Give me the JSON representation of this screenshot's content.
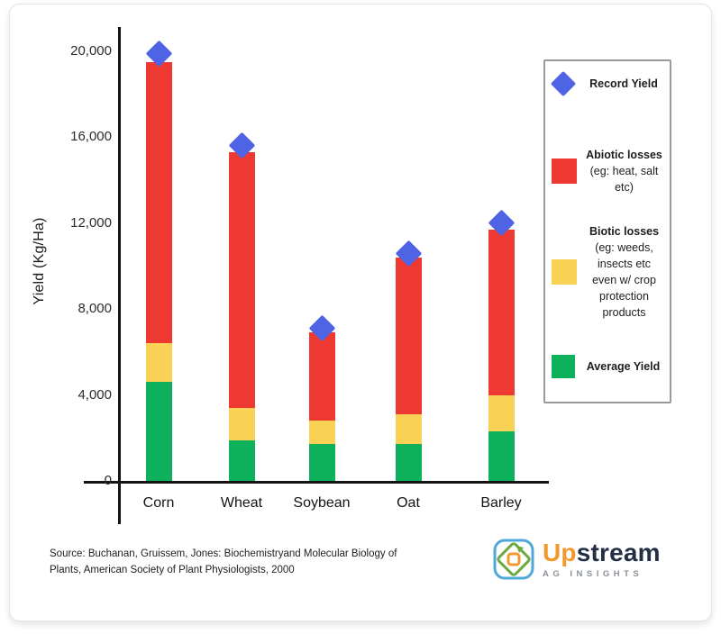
{
  "chart_data": {
    "type": "bar",
    "stacked": true,
    "title": "",
    "xlabel": "",
    "ylabel": "Yield (Kg/Ha)",
    "ylim": [
      0,
      20000
    ],
    "ytick_values": [
      0,
      4000,
      8000,
      12000,
      16000,
      20000
    ],
    "ytick_labels": [
      "0",
      "4,000",
      "8,000",
      "12,000",
      "16,000",
      "20,000"
    ],
    "grid": false,
    "legend_position": "right",
    "categories": [
      "Corn",
      "Wheat",
      "Soybean",
      "Oat",
      "Barley"
    ],
    "series": [
      {
        "name": "Average Yield",
        "color": "#0db15b",
        "values": [
          4600,
          1900,
          1700,
          1700,
          2300
        ]
      },
      {
        "name": "Biotic losses",
        "color": "#f8d155",
        "values": [
          1800,
          1500,
          1100,
          1400,
          1700
        ]
      },
      {
        "name": "Abiotic losses",
        "color": "#ee3932",
        "values": [
          13100,
          11900,
          4100,
          7300,
          7700
        ]
      }
    ],
    "markers": {
      "name": "Record Yield",
      "shape": "diamond",
      "color": "#4e64e4",
      "values": [
        19900,
        15600,
        7100,
        10600,
        12000
      ]
    }
  },
  "legend": {
    "items": [
      {
        "bold": "Record Yield",
        "rest": "",
        "swatch": "diamond",
        "color": "#4e64e4"
      },
      {
        "bold": "Abiotic losses",
        "rest": " (eg: heat, salt etc)",
        "swatch": "square",
        "color": "#ee3932"
      },
      {
        "bold": "Biotic losses",
        "rest": " (eg: weeds, insects etc even w/ crop protection products",
        "swatch": "square",
        "color": "#f8d155"
      },
      {
        "bold": "Average Yield",
        "rest": "",
        "swatch": "square",
        "color": "#0db15b"
      }
    ]
  },
  "source": {
    "line1": "Source: Buchanan, Gruissem, Jones: Biochemistryand Molecular Biology of",
    "line2": "Plants, American Society of Plant Physiologists, 2000"
  },
  "logo": {
    "word_part1": "Up",
    "word_part2": "stream",
    "tagline": "AG INSIGHTS",
    "accent_orange": "#f2992e",
    "navy": "#232f44",
    "icon_blue": "#4fa8d8",
    "icon_green": "#6aaa3f"
  }
}
